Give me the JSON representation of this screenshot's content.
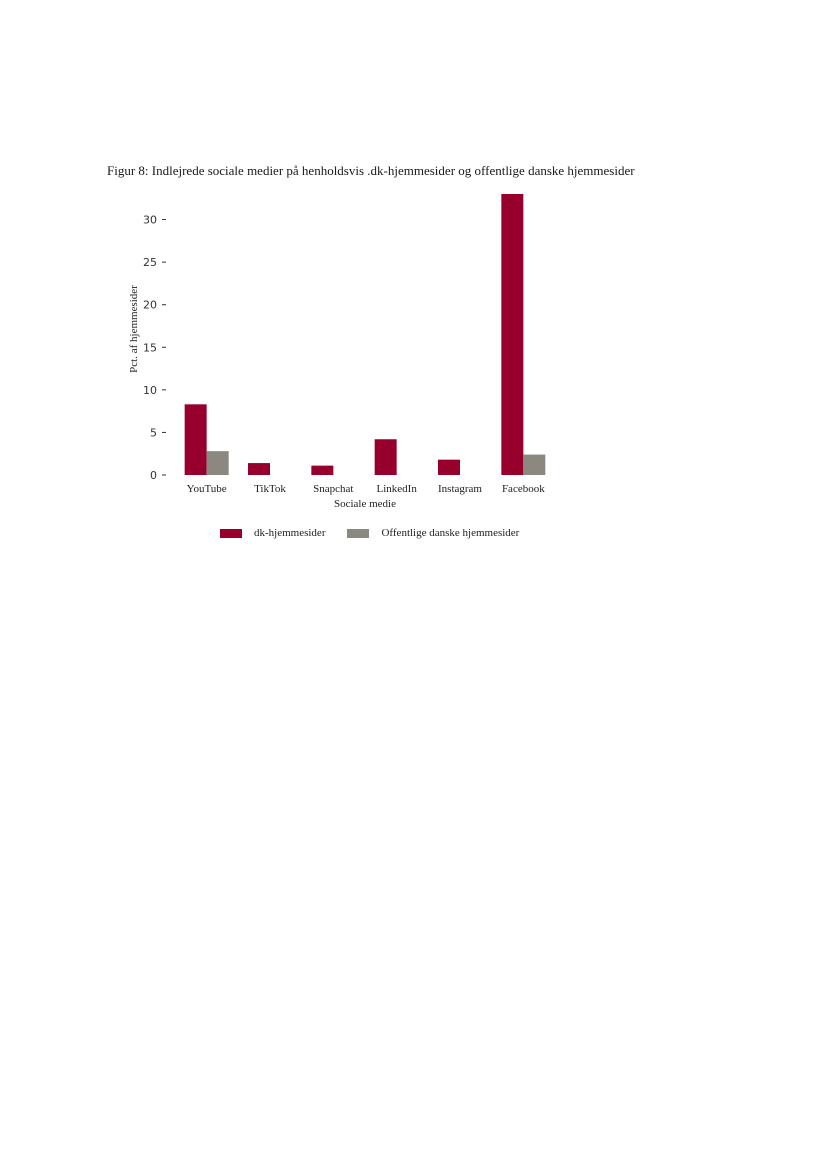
{
  "caption": "Figur 8: Indlejrede sociale medier på henholdsvis .dk-hjemmesider og offentlige danske hjemmesider",
  "chart_data": {
    "type": "bar",
    "categories": [
      "YouTube",
      "TikTok",
      "Snapchat",
      "LinkedIn",
      "Instagram",
      "Facebook"
    ],
    "series": [
      {
        "name": "dk-hjemmesider",
        "color": "#97002c",
        "values": [
          8.3,
          1.4,
          1.1,
          4.2,
          1.8,
          33.0
        ]
      },
      {
        "name": "Offentlige danske hjemmesider",
        "color": "#8b8880",
        "values": [
          2.8,
          0,
          0,
          0,
          0,
          2.4
        ]
      }
    ],
    "xlabel": "Sociale medie",
    "ylabel": "Pct. af hjemmesider",
    "ylim": [
      0,
      33
    ],
    "yticks": [
      0,
      5,
      10,
      15,
      20,
      25,
      30
    ],
    "grid": false,
    "legend_position": "bottom"
  }
}
